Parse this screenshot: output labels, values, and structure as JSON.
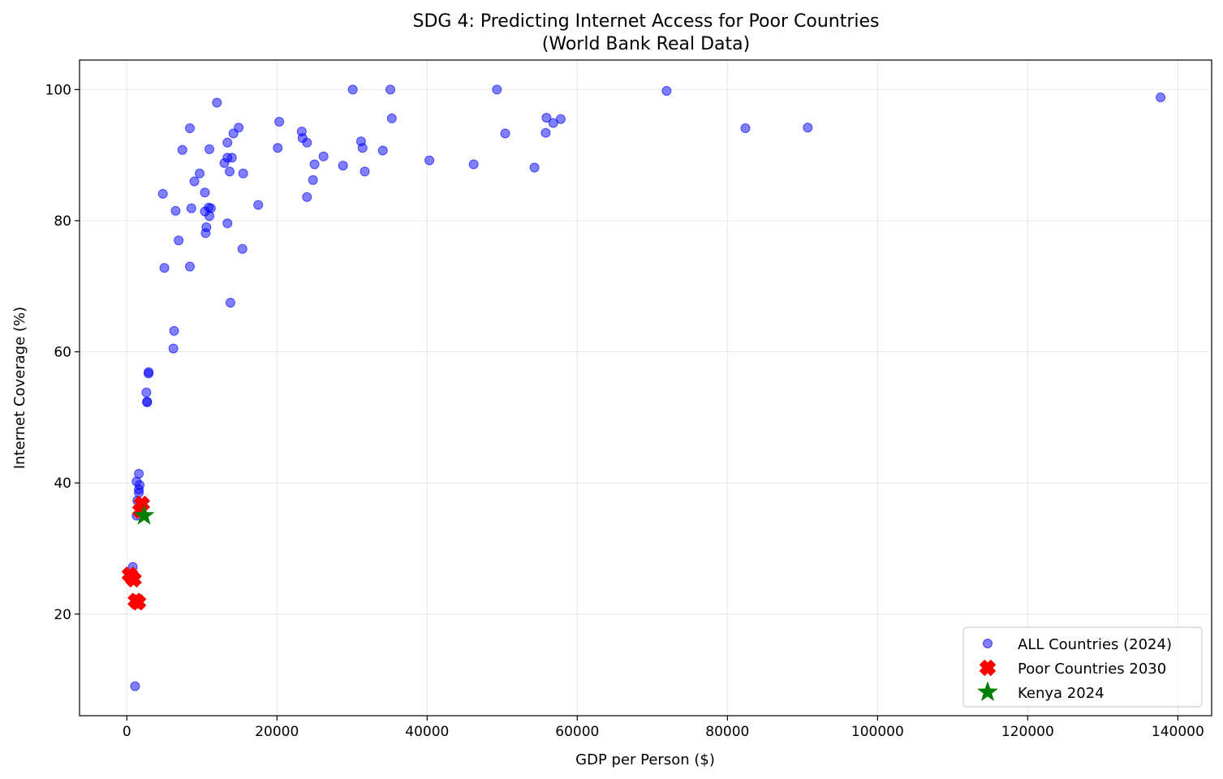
{
  "chart_data": {
    "type": "scatter",
    "title": "SDG 4: Predicting Internet Access for Poor Countries",
    "subtitle": "(World Bank Real Data)",
    "xlabel": "GDP per Person ($)",
    "ylabel": "Internet Coverage (%)",
    "xlim": [
      -6300,
      144500
    ],
    "ylim": [
      4.5,
      104.5
    ],
    "xticks": [
      0,
      20000,
      40000,
      60000,
      80000,
      100000,
      120000,
      140000
    ],
    "yticks": [
      20,
      40,
      60,
      80,
      100
    ],
    "grid": true,
    "legend_position": "lower right",
    "series": [
      {
        "name": "ALL Countries (2024)",
        "marker": "circle",
        "color": "#0000ff",
        "points": [
          [
            1100,
            9
          ],
          [
            800,
            27.2
          ],
          [
            1300,
            35
          ],
          [
            1700,
            36.3
          ],
          [
            1400,
            37.3
          ],
          [
            1600,
            38.5
          ],
          [
            1600,
            39
          ],
          [
            1700,
            39.7
          ],
          [
            1300,
            40.2
          ],
          [
            1600,
            41.4
          ],
          [
            2700,
            52.3
          ],
          [
            2700,
            52.4
          ],
          [
            2600,
            53.8
          ],
          [
            2900,
            56.7
          ],
          [
            2900,
            56.9
          ],
          [
            6200,
            60.5
          ],
          [
            6300,
            63.2
          ],
          [
            13800,
            67.5
          ],
          [
            5000,
            72.8
          ],
          [
            8400,
            73
          ],
          [
            15400,
            75.7
          ],
          [
            6900,
            77
          ],
          [
            10500,
            78.1
          ],
          [
            10600,
            79
          ],
          [
            13400,
            79.6
          ],
          [
            11000,
            80.7
          ],
          [
            6500,
            81.5
          ],
          [
            10400,
            81.4
          ],
          [
            10900,
            82
          ],
          [
            11200,
            81.9
          ],
          [
            8600,
            81.9
          ],
          [
            17500,
            82.4
          ],
          [
            4800,
            84.1
          ],
          [
            10400,
            84.3
          ],
          [
            24000,
            83.6
          ],
          [
            9000,
            86
          ],
          [
            9700,
            87.2
          ],
          [
            24800,
            86.2
          ],
          [
            13700,
            87.5
          ],
          [
            15500,
            87.2
          ],
          [
            31700,
            87.5
          ],
          [
            13000,
            88.8
          ],
          [
            25000,
            88.6
          ],
          [
            28800,
            88.4
          ],
          [
            46200,
            88.6
          ],
          [
            54300,
            88.1
          ],
          [
            40300,
            89.2
          ],
          [
            13400,
            89.6
          ],
          [
            14000,
            89.6
          ],
          [
            26200,
            89.8
          ],
          [
            7400,
            90.8
          ],
          [
            11000,
            90.9
          ],
          [
            20100,
            91.1
          ],
          [
            31400,
            91.1
          ],
          [
            34100,
            90.7
          ],
          [
            13400,
            91.9
          ],
          [
            24000,
            91.9
          ],
          [
            31200,
            92.1
          ],
          [
            23400,
            92.6
          ],
          [
            14200,
            93.3
          ],
          [
            23300,
            93.6
          ],
          [
            50400,
            93.3
          ],
          [
            55800,
            93.4
          ],
          [
            8400,
            94.1
          ],
          [
            14900,
            94.2
          ],
          [
            82400,
            94.1
          ],
          [
            90700,
            94.2
          ],
          [
            56800,
            94.9
          ],
          [
            20300,
            95.1
          ],
          [
            35300,
            95.6
          ],
          [
            55900,
            95.7
          ],
          [
            57800,
            95.5
          ],
          [
            12000,
            98
          ],
          [
            137700,
            98.8
          ],
          [
            71900,
            99.8
          ],
          [
            30100,
            100
          ],
          [
            35100,
            100
          ],
          [
            49300,
            100
          ]
        ]
      },
      {
        "name": "Poor Countries 2030",
        "marker": "x",
        "color": "#ff0000",
        "points": [
          [
            400,
            26
          ],
          [
            900,
            25.3
          ],
          [
            1200,
            22
          ],
          [
            1500,
            21.8
          ],
          [
            2000,
            36.8
          ],
          [
            1800,
            35.8
          ]
        ]
      },
      {
        "name": "Kenya 2024",
        "marker": "star",
        "color": "#008000",
        "points": [
          [
            2300,
            35
          ]
        ]
      }
    ]
  }
}
